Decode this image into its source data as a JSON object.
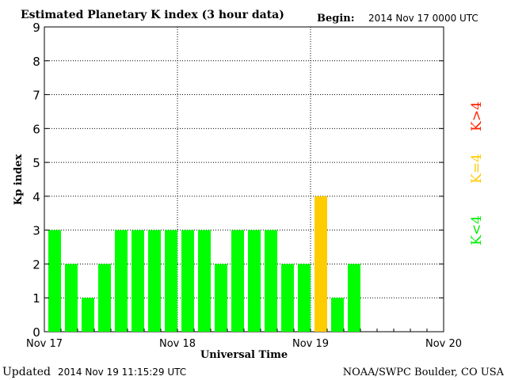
{
  "chart_data": {
    "type": "bar",
    "title": "Estimated Planetary K index (3 hour data)",
    "begin_label": "Begin:",
    "begin_value": "2014 Nov 17 0000 UTC",
    "xlabel": "Universal Time",
    "ylabel": "Kp index",
    "ylim": [
      0,
      9
    ],
    "y_ticks": [
      "0",
      "1",
      "2",
      "3",
      "4",
      "5",
      "6",
      "7",
      "8",
      "9"
    ],
    "x_tick_labels": [
      "Nov 17",
      "Nov 18",
      "Nov 19",
      "Nov 20"
    ],
    "bars_per_day": 8,
    "days": 3,
    "values": [
      3,
      2,
      1,
      2,
      3,
      3,
      3,
      3,
      3,
      3,
      2,
      3,
      3,
      3,
      2,
      2,
      4,
      1,
      2
    ],
    "grid": true,
    "legend": [
      {
        "label": "K<4",
        "color": "#00ee00"
      },
      {
        "label": "K=4",
        "color": "#ffcc00"
      },
      {
        "label": "K>4",
        "color": "#ff2200"
      }
    ],
    "colors": {
      "low": "#00ff00",
      "equal": "#ffcc00",
      "high": "#ff2200"
    },
    "updated_label": "Updated",
    "updated_value": "2014 Nov 19 11:15:29 UTC",
    "credit": "NOAA/SWPC Boulder, CO USA"
  }
}
